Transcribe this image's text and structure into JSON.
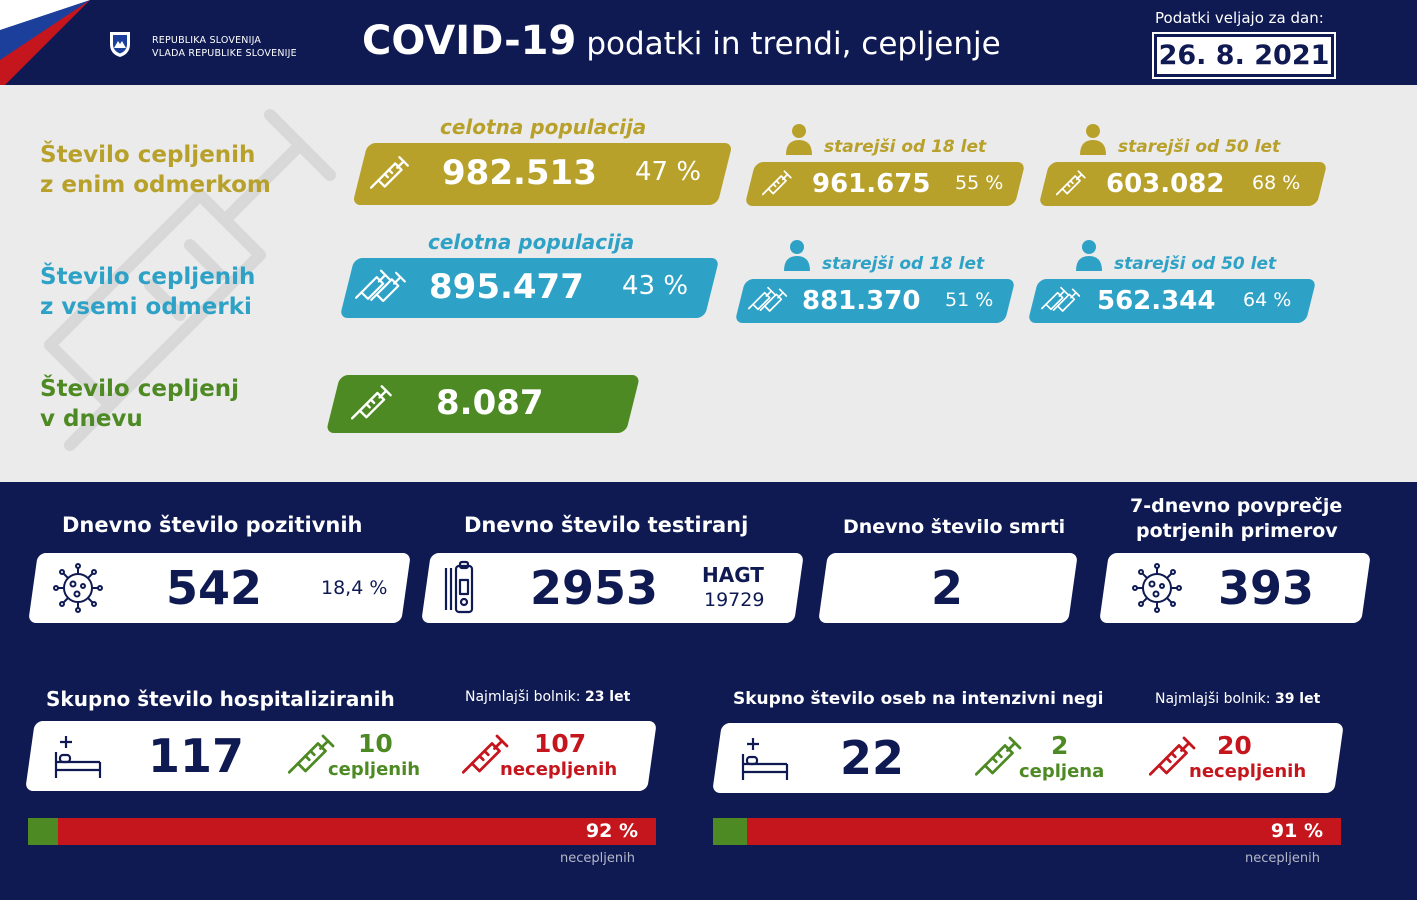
{
  "header": {
    "govt_line1": "REPUBLIKA SLOVENIJA",
    "govt_line2": "VLADA REPUBLIKE SLOVENIJE",
    "title_bold": "COVID-19",
    "title_rest": "podatki in trendi, cepljenje",
    "valid_label": "Podatki veljajo za dan:",
    "date": "26. 8. 2021"
  },
  "vaccination": {
    "one_dose": {
      "label_line1": "Število cepljenih",
      "label_line2": "z enim odmerkom",
      "total_caption": "celotna populacija",
      "total_value": "982.513",
      "total_pct": "47 %",
      "age18_caption": "starejši od 18 let",
      "age18_value": "961.675",
      "age18_pct": "55 %",
      "age50_caption": "starejši od 50 let",
      "age50_value": "603.082",
      "age50_pct": "68 %"
    },
    "all_doses": {
      "label_line1": "Število cepljenih",
      "label_line2": "z vsemi odmerki",
      "total_caption": "celotna populacija",
      "total_value": "895.477",
      "total_pct": "43 %",
      "age18_caption": "starejši od 18 let",
      "age18_value": "881.370",
      "age18_pct": "51 %",
      "age50_caption": "starejši od 50 let",
      "age50_value": "562.344",
      "age50_pct": "64 %"
    },
    "daily": {
      "label_line1": "Število cepljenj",
      "label_line2": "v dnevu",
      "value": "8.087"
    }
  },
  "stats": {
    "positives": {
      "label": "Dnevno število pozitivnih",
      "value": "542",
      "pct": "18,4 %"
    },
    "tests": {
      "label": "Dnevno število testiranj",
      "value": "2953",
      "hagt_label": "HAGT",
      "hagt_value": "19729"
    },
    "deaths": {
      "label": "Dnevno število smrti",
      "value": "2"
    },
    "avg7": {
      "label_line1": "7-dnevno povprečje",
      "label_line2": "potrjenih primerov",
      "value": "393"
    }
  },
  "hospital": {
    "label": "Skupno število hospitaliziranih",
    "youngest_label": "Najmlajši bolnik:",
    "youngest_value": "23 let",
    "total": "117",
    "vaccinated_value": "10",
    "vaccinated_label": "cepljenih",
    "unvaccinated_value": "107",
    "unvaccinated_label": "necepljenih",
    "unvaccinated_share": 92,
    "bar_pct_text": "92 %",
    "bar_caption": "necepljenih"
  },
  "icu": {
    "label": "Skupno število oseb na intenzivni negi",
    "youngest_label": "Najmlajši bolnik:",
    "youngest_value": "39 let",
    "total": "22",
    "vaccinated_value": "2",
    "vaccinated_label": "cepljena",
    "unvaccinated_value": "20",
    "unvaccinated_label": "necepljenih",
    "unvaccinated_share": 91,
    "bar_pct_text": "91 %",
    "bar_caption": "necepljenih"
  },
  "colors": {
    "navy": "#0f1a52",
    "gold": "#b8a12b",
    "teal": "#2ea2c6",
    "green": "#4e8a23",
    "red": "#c4161c",
    "light_gray": "#ebebeb"
  },
  "icons": [
    "syringe-icon",
    "person-icon",
    "virus-icon",
    "test-kit-icon",
    "hospital-bed-icon",
    "coat-of-arms-icon"
  ]
}
